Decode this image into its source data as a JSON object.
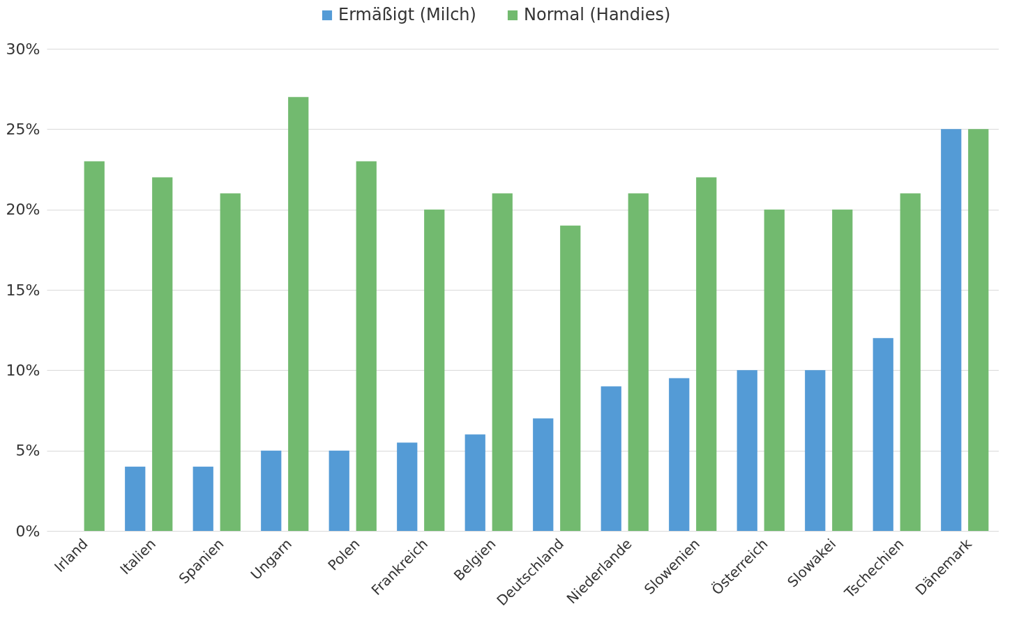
{
  "chart_data": {
    "type": "bar",
    "categories": [
      "Irland",
      "Italien",
      "Spanien",
      "Ungarn",
      "Polen",
      "Frankreich",
      "Belgien",
      "Deutschland",
      "Niederlande",
      "Slowenien",
      "Österreich",
      "Slowakei",
      "Tschechien",
      "Dänemark"
    ],
    "series": [
      {
        "name": "Ermäßigt (Milch)",
        "color": "#549bd6",
        "values": [
          0,
          4,
          4,
          5,
          5,
          5.5,
          6,
          7,
          9,
          9.5,
          10,
          10,
          12,
          25
        ]
      },
      {
        "name": "Normal (Handies)",
        "color": "#72ba6f",
        "values": [
          23,
          22,
          21,
          27,
          23,
          20,
          21,
          19,
          21,
          22,
          20,
          20,
          21,
          25
        ]
      }
    ],
    "ylim": [
      0,
      30
    ],
    "yticks": [
      {
        "value": 0,
        "label": "0%"
      },
      {
        "value": 5,
        "label": "5%"
      },
      {
        "value": 10,
        "label": "10%"
      },
      {
        "value": 15,
        "label": "15%"
      },
      {
        "value": 20,
        "label": "20%"
      },
      {
        "value": 25,
        "label": "25%"
      },
      {
        "value": 30,
        "label": "30%"
      }
    ],
    "grid": "y",
    "legend": "top"
  }
}
